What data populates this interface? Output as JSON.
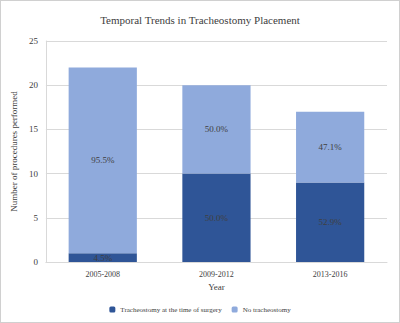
{
  "chart_data": {
    "type": "bar",
    "title": "Temporal Trends in Tracheostomy Placement",
    "x_label": "Year",
    "y_label": "Number of procedures performed",
    "categories": [
      "2005-2008",
      "2009-2012",
      "2013-2016"
    ],
    "series": [
      {
        "name": "Tracheostomy at the time of surgery",
        "color": "#2f5597",
        "values": [
          1,
          10,
          9
        ],
        "percent_labels": [
          "4.5%",
          "50.0%",
          "52.9%"
        ]
      },
      {
        "name": "No tracheostomy",
        "color": "#8faadc",
        "values": [
          21,
          10,
          8
        ],
        "percent_labels": [
          "95.5%",
          "50.0%",
          "47.1%"
        ]
      }
    ],
    "stacked": true,
    "ylim": [
      0,
      25
    ],
    "yticks": [
      0,
      5,
      10,
      15,
      20,
      25
    ],
    "grid": true,
    "legend": "bottom"
  }
}
